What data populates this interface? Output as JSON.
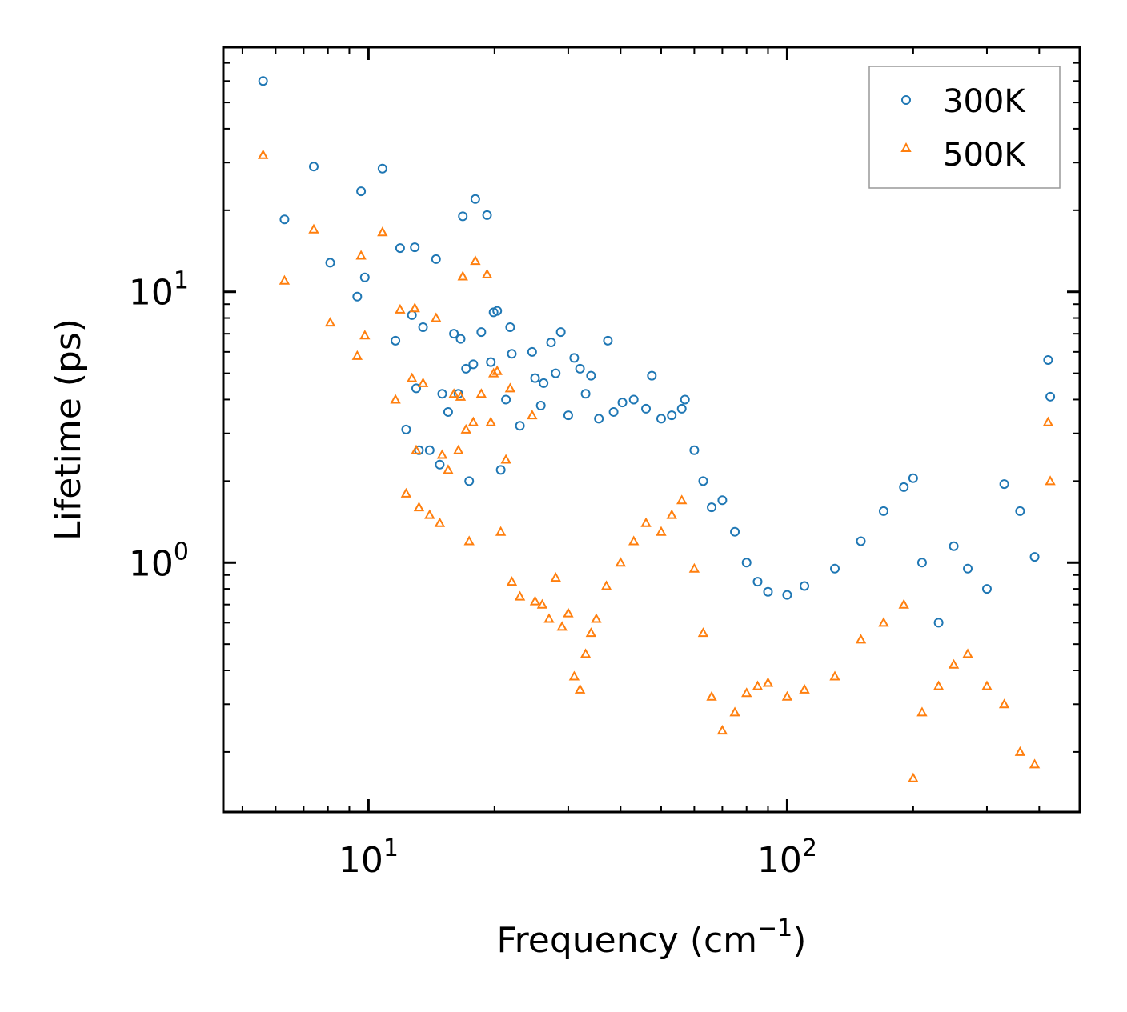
{
  "chart_data": {
    "type": "scatter",
    "title": "",
    "xlabel": "Frequency (cm",
    "xlabel_sup": "−1",
    "xlabel_close": ")",
    "ylabel": "Lifetime (ps)",
    "xscale": "log",
    "yscale": "log",
    "xlim": [
      4.5,
      500
    ],
    "ylim": [
      0.12,
      80
    ],
    "x_ticks": [
      {
        "value": 10,
        "base": "10",
        "exp": "1"
      },
      {
        "value": 100,
        "base": "10",
        "exp": "2"
      }
    ],
    "y_ticks": [
      {
        "value": 1,
        "base": "10",
        "exp": "0"
      },
      {
        "value": 10,
        "base": "10",
        "exp": "1"
      }
    ],
    "legend_position": "top-right",
    "series": [
      {
        "name": "300K",
        "marker": "circle",
        "color": "#1f77b4",
        "points": [
          [
            5.6,
            60
          ],
          [
            6.3,
            18.5
          ],
          [
            7.4,
            29
          ],
          [
            8.1,
            12.8
          ],
          [
            9.4,
            9.6
          ],
          [
            9.6,
            23.5
          ],
          [
            9.8,
            11.3
          ],
          [
            10.8,
            28.5
          ],
          [
            11.6,
            6.6
          ],
          [
            11.9,
            14.5
          ],
          [
            12.3,
            3.1
          ],
          [
            12.7,
            8.2
          ],
          [
            12.9,
            14.6
          ],
          [
            13.0,
            4.4
          ],
          [
            13.2,
            2.6
          ],
          [
            13.5,
            7.4
          ],
          [
            14.0,
            2.6
          ],
          [
            14.5,
            13.2
          ],
          [
            14.8,
            2.3
          ],
          [
            15.0,
            4.2
          ],
          [
            15.5,
            3.6
          ],
          [
            16.0,
            7.0
          ],
          [
            16.4,
            4.2
          ],
          [
            16.6,
            6.7
          ],
          [
            16.8,
            19
          ],
          [
            17.1,
            5.2
          ],
          [
            17.4,
            2.0
          ],
          [
            17.8,
            5.4
          ],
          [
            18.0,
            22
          ],
          [
            18.6,
            7.1
          ],
          [
            19.2,
            19.2
          ],
          [
            19.6,
            5.5
          ],
          [
            19.9,
            8.4
          ],
          [
            20.3,
            8.5
          ],
          [
            20.7,
            2.2
          ],
          [
            21.3,
            4.0
          ],
          [
            21.8,
            7.4
          ],
          [
            22.0,
            5.9
          ],
          [
            23.0,
            3.2
          ],
          [
            24.6,
            6.0
          ],
          [
            25.0,
            4.8
          ],
          [
            25.8,
            3.8
          ],
          [
            26.2,
            4.6
          ],
          [
            27.3,
            6.5
          ],
          [
            28.0,
            5.0
          ],
          [
            28.8,
            7.1
          ],
          [
            30.0,
            3.5
          ],
          [
            31.0,
            5.7
          ],
          [
            32.0,
            5.2
          ],
          [
            33.0,
            4.2
          ],
          [
            34.0,
            4.9
          ],
          [
            35.5,
            3.4
          ],
          [
            37.3,
            6.6
          ],
          [
            38.5,
            3.6
          ],
          [
            40.4,
            3.9
          ],
          [
            43.0,
            4.0
          ],
          [
            46.0,
            3.7
          ],
          [
            47.5,
            4.9
          ],
          [
            50.0,
            3.4
          ],
          [
            53.0,
            3.5
          ],
          [
            56.0,
            3.7
          ],
          [
            57.0,
            4.0
          ],
          [
            60.0,
            2.6
          ],
          [
            63.0,
            2.0
          ],
          [
            66.0,
            1.6
          ],
          [
            70.0,
            1.7
          ],
          [
            75.0,
            1.3
          ],
          [
            80.0,
            1.0
          ],
          [
            85.0,
            0.85
          ],
          [
            90.0,
            0.78
          ],
          [
            100.0,
            0.76
          ],
          [
            110.0,
            0.82
          ],
          [
            130.0,
            0.95
          ],
          [
            150.0,
            1.2
          ],
          [
            170.0,
            1.55
          ],
          [
            190.0,
            1.9
          ],
          [
            200.0,
            2.05
          ],
          [
            210.0,
            1.0
          ],
          [
            230.0,
            0.6
          ],
          [
            250.0,
            1.15
          ],
          [
            270.0,
            0.95
          ],
          [
            300.0,
            0.8
          ],
          [
            330.0,
            1.95
          ],
          [
            360.0,
            1.55
          ],
          [
            390.0,
            1.05
          ],
          [
            420.0,
            5.6
          ],
          [
            425.0,
            4.1
          ]
        ]
      },
      {
        "name": "500K",
        "marker": "triangle",
        "color": "#ff7f0e",
        "points": [
          [
            5.6,
            32
          ],
          [
            6.3,
            11
          ],
          [
            7.4,
            17
          ],
          [
            8.1,
            7.7
          ],
          [
            9.4,
            5.8
          ],
          [
            9.6,
            13.6
          ],
          [
            9.8,
            6.9
          ],
          [
            10.8,
            16.6
          ],
          [
            11.6,
            4.0
          ],
          [
            11.9,
            8.6
          ],
          [
            12.3,
            1.8
          ],
          [
            12.7,
            4.8
          ],
          [
            12.9,
            8.7
          ],
          [
            13.0,
            2.6
          ],
          [
            13.2,
            1.6
          ],
          [
            13.5,
            4.6
          ],
          [
            14.0,
            1.5
          ],
          [
            14.5,
            8.0
          ],
          [
            14.8,
            1.4
          ],
          [
            15.0,
            2.5
          ],
          [
            15.5,
            2.2
          ],
          [
            16.0,
            4.2
          ],
          [
            16.4,
            2.6
          ],
          [
            16.6,
            4.1
          ],
          [
            16.8,
            11.4
          ],
          [
            17.1,
            3.1
          ],
          [
            17.4,
            1.2
          ],
          [
            17.8,
            3.3
          ],
          [
            18.0,
            13.0
          ],
          [
            18.6,
            4.2
          ],
          [
            19.2,
            11.6
          ],
          [
            19.6,
            3.3
          ],
          [
            19.9,
            5.0
          ],
          [
            20.3,
            5.1
          ],
          [
            20.7,
            1.3
          ],
          [
            21.3,
            2.4
          ],
          [
            21.8,
            4.4
          ],
          [
            22.0,
            0.85
          ],
          [
            23.0,
            0.75
          ],
          [
            24.6,
            3.5
          ],
          [
            25.0,
            0.72
          ],
          [
            26.0,
            0.7
          ],
          [
            27.0,
            0.62
          ],
          [
            28.0,
            0.88
          ],
          [
            29.0,
            0.58
          ],
          [
            30.0,
            0.65
          ],
          [
            31.0,
            0.38
          ],
          [
            32.0,
            0.34
          ],
          [
            33.0,
            0.46
          ],
          [
            34.0,
            0.55
          ],
          [
            35.0,
            0.62
          ],
          [
            37.0,
            0.82
          ],
          [
            40.0,
            1.0
          ],
          [
            43.0,
            1.2
          ],
          [
            46.0,
            1.4
          ],
          [
            50.0,
            1.3
          ],
          [
            53.0,
            1.5
          ],
          [
            56.0,
            1.7
          ],
          [
            60.0,
            0.95
          ],
          [
            63.0,
            0.55
          ],
          [
            66.0,
            0.32
          ],
          [
            70.0,
            0.24
          ],
          [
            75.0,
            0.28
          ],
          [
            80.0,
            0.33
          ],
          [
            85.0,
            0.35
          ],
          [
            90.0,
            0.36
          ],
          [
            100.0,
            0.32
          ],
          [
            110.0,
            0.34
          ],
          [
            130.0,
            0.38
          ],
          [
            150.0,
            0.52
          ],
          [
            170.0,
            0.6
          ],
          [
            190.0,
            0.7
          ],
          [
            200.0,
            0.16
          ],
          [
            210.0,
            0.28
          ],
          [
            230.0,
            0.35
          ],
          [
            250.0,
            0.42
          ],
          [
            270.0,
            0.46
          ],
          [
            300.0,
            0.35
          ],
          [
            330.0,
            0.3
          ],
          [
            360.0,
            0.2
          ],
          [
            390.0,
            0.18
          ],
          [
            420.0,
            3.3
          ],
          [
            425.0,
            2.0
          ]
        ]
      }
    ]
  }
}
